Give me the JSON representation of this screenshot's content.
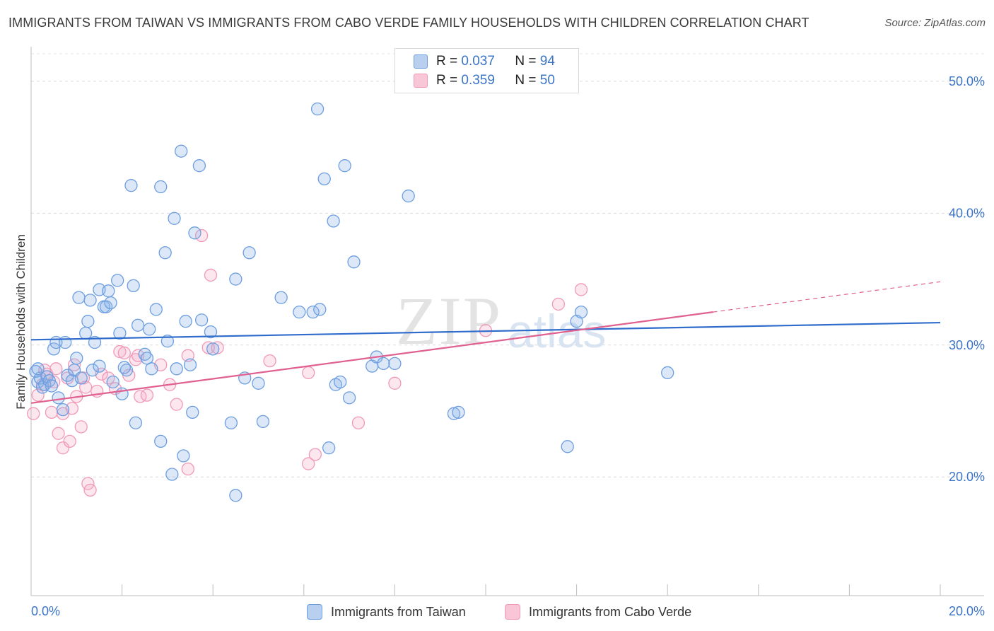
{
  "title": "IMMIGRANTS FROM TAIWAN VS IMMIGRANTS FROM CABO VERDE FAMILY HOUSEHOLDS WITH CHILDREN CORRELATION CHART",
  "source": "Source: ZipAtlas.com",
  "watermark": {
    "zip": "ZIP",
    "atlas": "atlas"
  },
  "colors": {
    "taiwan": "#6d9ee0",
    "taiwan_line": "#2f6ccc",
    "caboverde": "#f09ab8",
    "caboverde_line": "#e0608f",
    "accent": "#3b74c7"
  },
  "legend_top": [
    {
      "r_label": "R =",
      "r_value": "0.037",
      "n_label": "N =",
      "n_value": "94"
    },
    {
      "r_label": "R =",
      "r_value": "0.359",
      "n_label": "N =",
      "n_value": "50"
    }
  ],
  "legend_bottom": [
    "Immigrants from Taiwan",
    "Immigrants from Cabo Verde"
  ],
  "chart_data": {
    "type": "scatter",
    "xlabel": "",
    "ylabel": "Family Households with Children",
    "xlim": [
      0,
      20
    ],
    "ylim": [
      11,
      52.3
    ],
    "x_ticks": [
      {
        "v": 0,
        "label": "0.0%"
      },
      {
        "v": 20,
        "label": "20.0%"
      }
    ],
    "y_ticks": [
      {
        "v": 20,
        "label": "20.0%"
      },
      {
        "v": 30,
        "label": "30.0%"
      },
      {
        "v": 40,
        "label": "40.0%"
      },
      {
        "v": 50,
        "label": "50.0%"
      }
    ],
    "grid": true,
    "series": [
      {
        "name": "Immigrants from Taiwan",
        "r": 0.037,
        "n": 94,
        "trend": {
          "x0": 0.0,
          "y0": 30.4,
          "x1": 20.0,
          "y1": 31.7
        },
        "points": [
          [
            0.1,
            28.0
          ],
          [
            0.15,
            27.2
          ],
          [
            0.2,
            27.5
          ],
          [
            0.25,
            26.8
          ],
          [
            0.3,
            27.0
          ],
          [
            0.35,
            27.6
          ],
          [
            0.4,
            27.3
          ],
          [
            0.5,
            29.7
          ],
          [
            0.55,
            30.2
          ],
          [
            0.6,
            26.0
          ],
          [
            0.7,
            25.1
          ],
          [
            0.75,
            30.2
          ],
          [
            0.8,
            27.7
          ],
          [
            0.9,
            27.3
          ],
          [
            0.95,
            28.1
          ],
          [
            1.0,
            29.0
          ],
          [
            1.05,
            33.6
          ],
          [
            1.1,
            27.5
          ],
          [
            1.2,
            30.9
          ],
          [
            1.25,
            31.8
          ],
          [
            1.3,
            33.4
          ],
          [
            1.35,
            28.1
          ],
          [
            1.4,
            30.2
          ],
          [
            1.5,
            28.4
          ],
          [
            1.5,
            34.2
          ],
          [
            1.6,
            32.9
          ],
          [
            1.65,
            32.9
          ],
          [
            1.7,
            34.1
          ],
          [
            1.75,
            33.2
          ],
          [
            1.8,
            27.2
          ],
          [
            1.9,
            34.9
          ],
          [
            1.95,
            30.9
          ],
          [
            2.0,
            26.3
          ],
          [
            2.1,
            28.1
          ],
          [
            2.2,
            42.1
          ],
          [
            2.25,
            34.5
          ],
          [
            2.3,
            24.1
          ],
          [
            2.35,
            31.5
          ],
          [
            2.5,
            29.3
          ],
          [
            2.55,
            29.0
          ],
          [
            2.6,
            31.2
          ],
          [
            2.65,
            28.2
          ],
          [
            2.75,
            32.7
          ],
          [
            2.85,
            42.0
          ],
          [
            2.85,
            22.7
          ],
          [
            2.95,
            37.0
          ],
          [
            3.0,
            30.3
          ],
          [
            3.1,
            20.2
          ],
          [
            3.15,
            39.6
          ],
          [
            3.2,
            28.2
          ],
          [
            3.3,
            44.7
          ],
          [
            3.35,
            21.6
          ],
          [
            3.4,
            31.8
          ],
          [
            3.5,
            28.5
          ],
          [
            3.55,
            24.9
          ],
          [
            3.6,
            38.5
          ],
          [
            3.7,
            43.6
          ],
          [
            3.75,
            31.9
          ],
          [
            3.95,
            31.0
          ],
          [
            4.0,
            29.7
          ],
          [
            4.4,
            24.1
          ],
          [
            4.5,
            35.0
          ],
          [
            4.5,
            18.6
          ],
          [
            4.7,
            27.5
          ],
          [
            4.8,
            37.0
          ],
          [
            5.0,
            27.1
          ],
          [
            5.1,
            24.2
          ],
          [
            5.5,
            33.6
          ],
          [
            5.9,
            32.5
          ],
          [
            6.2,
            32.5
          ],
          [
            6.3,
            47.9
          ],
          [
            6.35,
            32.7
          ],
          [
            6.45,
            42.6
          ],
          [
            6.55,
            22.2
          ],
          [
            6.65,
            39.4
          ],
          [
            6.7,
            27.0
          ],
          [
            6.8,
            27.2
          ],
          [
            6.9,
            43.6
          ],
          [
            7.0,
            26.0
          ],
          [
            7.1,
            36.3
          ],
          [
            7.5,
            28.4
          ],
          [
            7.6,
            29.1
          ],
          [
            7.75,
            28.6
          ],
          [
            8.0,
            28.6
          ],
          [
            8.3,
            41.3
          ],
          [
            9.3,
            24.8
          ],
          [
            9.4,
            24.9
          ],
          [
            11.8,
            22.3
          ],
          [
            12.0,
            31.8
          ],
          [
            12.1,
            32.5
          ],
          [
            14.0,
            27.9
          ],
          [
            0.15,
            28.2
          ],
          [
            0.45,
            26.9
          ],
          [
            2.05,
            28.3
          ]
        ]
      },
      {
        "name": "Immigrants from Cabo Verde",
        "r": 0.359,
        "n": 50,
        "trend": {
          "x0": 0.0,
          "y0": 25.6,
          "x1": 15.0,
          "y1": 32.5
        },
        "trend_dashed": {
          "x0": 15.0,
          "y0": 32.5,
          "x1": 20.0,
          "y1": 34.8
        },
        "points": [
          [
            0.05,
            24.8
          ],
          [
            0.15,
            26.2
          ],
          [
            0.25,
            27.0
          ],
          [
            0.35,
            27.8
          ],
          [
            0.45,
            24.9
          ],
          [
            0.5,
            27.2
          ],
          [
            0.55,
            28.2
          ],
          [
            0.6,
            23.3
          ],
          [
            0.7,
            24.8
          ],
          [
            0.7,
            22.2
          ],
          [
            0.8,
            27.5
          ],
          [
            0.85,
            22.7
          ],
          [
            0.9,
            25.2
          ],
          [
            0.95,
            28.5
          ],
          [
            1.0,
            26.1
          ],
          [
            1.1,
            23.8
          ],
          [
            1.15,
            27.5
          ],
          [
            1.2,
            26.8
          ],
          [
            1.25,
            19.5
          ],
          [
            1.3,
            19.0
          ],
          [
            1.45,
            26.5
          ],
          [
            1.55,
            27.8
          ],
          [
            1.7,
            27.5
          ],
          [
            1.85,
            26.7
          ],
          [
            1.95,
            29.5
          ],
          [
            2.05,
            29.4
          ],
          [
            2.15,
            27.7
          ],
          [
            2.3,
            28.9
          ],
          [
            2.35,
            29.2
          ],
          [
            2.4,
            26.1
          ],
          [
            2.55,
            26.2
          ],
          [
            2.85,
            28.5
          ],
          [
            3.05,
            27.0
          ],
          [
            3.2,
            25.5
          ],
          [
            3.45,
            29.2
          ],
          [
            3.45,
            20.6
          ],
          [
            3.75,
            38.3
          ],
          [
            3.9,
            29.8
          ],
          [
            3.95,
            35.3
          ],
          [
            4.1,
            29.8
          ],
          [
            5.25,
            28.8
          ],
          [
            6.1,
            21.0
          ],
          [
            6.1,
            27.9
          ],
          [
            6.25,
            21.7
          ],
          [
            7.2,
            24.1
          ],
          [
            8.0,
            27.1
          ],
          [
            10.0,
            31.1
          ],
          [
            11.6,
            33.1
          ],
          [
            12.1,
            34.2
          ],
          [
            0.3,
            28.1
          ]
        ]
      }
    ]
  }
}
